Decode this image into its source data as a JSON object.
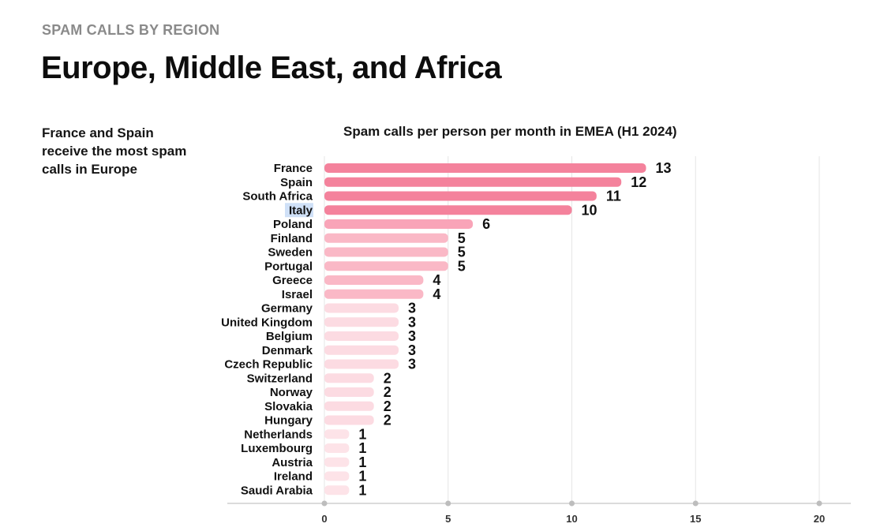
{
  "header": {
    "eyebrow": "SPAM CALLS BY REGION",
    "title": "Europe, Middle East, and Africa"
  },
  "side_note": "France and Spain receive the most spam calls in Europe",
  "chart_data": {
    "type": "bar",
    "orientation": "horizontal",
    "title": "Spam calls per person per month in EMEA (H1 2024)",
    "xlabel": "",
    "ylabel": "",
    "xlim": [
      0,
      20
    ],
    "x_ticks": [
      0,
      5,
      10,
      15,
      20
    ],
    "grid": true,
    "categories": [
      "France",
      "Spain",
      "South Africa",
      "Italy",
      "Poland",
      "Finland",
      "Sweden",
      "Portugal",
      "Greece",
      "Israel",
      "Germany",
      "United Kingdom",
      "Belgium",
      "Denmark",
      "Czech Republic",
      "Switzerland",
      "Norway",
      "Slovakia",
      "Hungary",
      "Netherlands",
      "Luxembourg",
      "Austria",
      "Ireland",
      "Saudi Arabia"
    ],
    "values": [
      13,
      12,
      11,
      10,
      6,
      5,
      5,
      5,
      4,
      4,
      3,
      3,
      3,
      3,
      3,
      2,
      2,
      2,
      2,
      1,
      1,
      1,
      1,
      1
    ],
    "data_labels": [
      "13",
      "12",
      "11",
      "10",
      "6",
      "5",
      "5",
      "5",
      "4",
      "4",
      "3",
      "3",
      "3",
      "3",
      "3",
      "2",
      "2",
      "2",
      "2",
      "1",
      "1",
      "1",
      "1",
      "1"
    ],
    "color_scale": {
      "10+": "#f4829c",
      "6": "#f9a4b8",
      "4-5": "#fab8c6",
      "2-3": "#fcdbe2",
      "1": "#fde3e8"
    },
    "highlighted_category": "Italy",
    "highlight_color": "#cfe0f7"
  }
}
